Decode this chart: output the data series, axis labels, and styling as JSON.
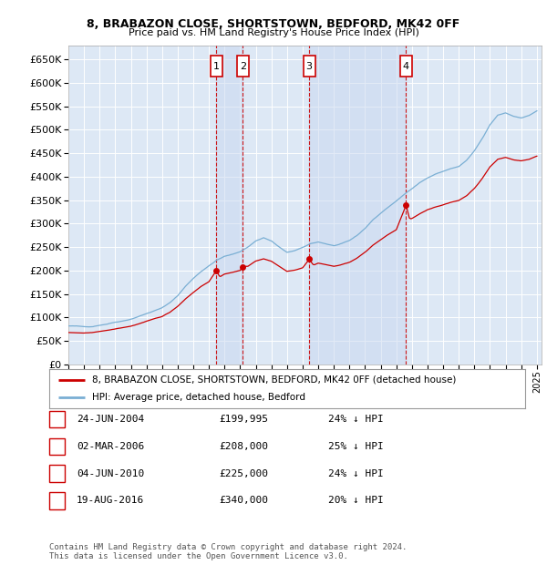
{
  "title1": "8, BRABAZON CLOSE, SHORTSTOWN, BEDFORD, MK42 0FF",
  "title2": "Price paid vs. HM Land Registry's House Price Index (HPI)",
  "ylim": [
    0,
    680000
  ],
  "yticks": [
    0,
    50000,
    100000,
    150000,
    200000,
    250000,
    300000,
    350000,
    400000,
    450000,
    500000,
    550000,
    600000,
    650000
  ],
  "background_color": "#ffffff",
  "plot_bg_color": "#dde8f5",
  "grid_color": "#ffffff",
  "transactions": [
    {
      "num": 1,
      "x": 2004.48,
      "price": 199995,
      "label": "24-JUN-2004",
      "price_str": "£199,995",
      "pct": "24% ↓ HPI"
    },
    {
      "num": 2,
      "x": 2006.17,
      "price": 208000,
      "label": "02-MAR-2006",
      "price_str": "£208,000",
      "pct": "25% ↓ HPI"
    },
    {
      "num": 3,
      "x": 2010.42,
      "price": 225000,
      "label": "04-JUN-2010",
      "price_str": "£225,000",
      "pct": "24% ↓ HPI"
    },
    {
      "num": 4,
      "x": 2016.63,
      "price": 340000,
      "label": "19-AUG-2016",
      "price_str": "£340,000",
      "pct": "20% ↓ HPI"
    }
  ],
  "hpi_line_color": "#7aafd4",
  "price_line_color": "#cc0000",
  "dashed_line_color": "#cc0000",
  "shade_color": "#c8d8f0",
  "legend_label1": "8, BRABAZON CLOSE, SHORTSTOWN, BEDFORD, MK42 0FF (detached house)",
  "legend_label2": "HPI: Average price, detached house, Bedford",
  "footnote": "Contains HM Land Registry data © Crown copyright and database right 2024.\nThis data is licensed under the Open Government Licence v3.0."
}
